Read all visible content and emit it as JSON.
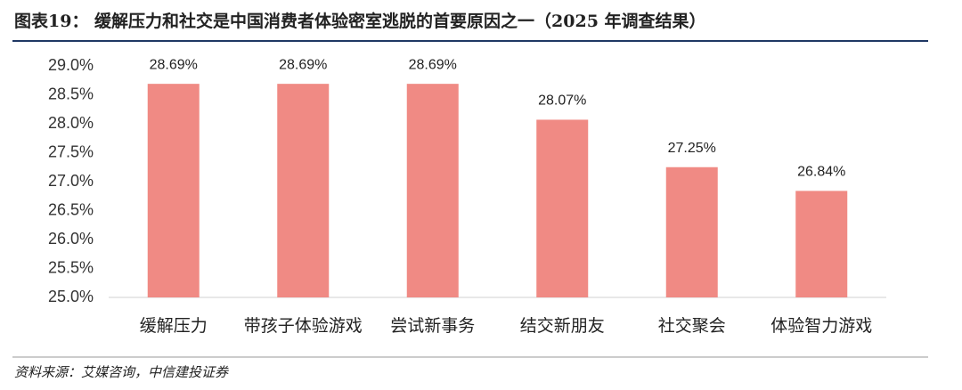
{
  "chart_data": {
    "type": "bar",
    "title": "图表19： 缓解压力和社交是中国消费者体验密室逃脱的首要原因之一（2025 年调查结果）",
    "source": "资料来源：艾媒咨询，中信建投证券",
    "categories": [
      "缓解压力",
      "带孩子体验游戏",
      "尝试新事务",
      "结交新朋友",
      "社交聚会",
      "体验智力游戏"
    ],
    "values": [
      28.69,
      28.69,
      28.69,
      28.07,
      27.25,
      26.84
    ],
    "value_labels": [
      "28.69%",
      "28.69%",
      "28.69%",
      "28.07%",
      "27.25%",
      "26.84%"
    ],
    "color": "#f08a84",
    "ylim": [
      25,
      29
    ],
    "yticks": [
      {
        "value": 25,
        "label": "25.0%"
      },
      {
        "value": 25.5,
        "label": "25.5%"
      },
      {
        "value": 26,
        "label": "26.0%"
      },
      {
        "value": 26.5,
        "label": "26.5%"
      },
      {
        "value": 27,
        "label": "27.0%"
      },
      {
        "value": 27.5,
        "label": "27.5%"
      },
      {
        "value": 28,
        "label": "28.0%"
      },
      {
        "value": 28.5,
        "label": "28.5%"
      },
      {
        "value": 29,
        "label": "29.0%"
      }
    ],
    "grid": false
  }
}
